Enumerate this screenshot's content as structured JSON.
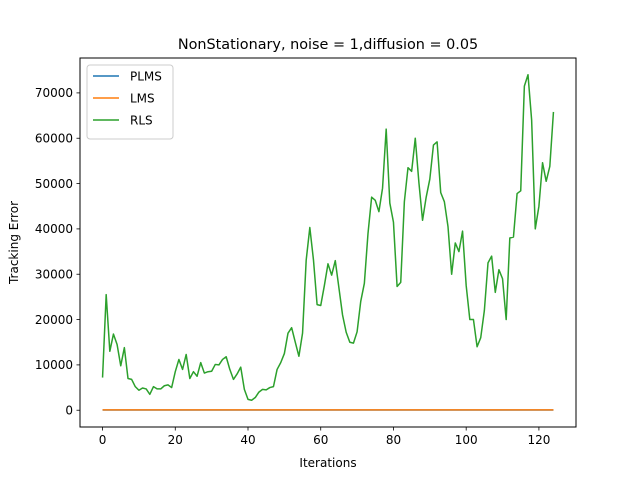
{
  "chart_data": {
    "type": "line",
    "title": "NonStationary, noise = 1,diffusion = 0.05",
    "xlabel": "Iterations",
    "ylabel": "Tracking Error",
    "xlim": [
      -6.2,
      130.2
    ],
    "ylim": [
      -3700,
      77700
    ],
    "xticks": [
      0,
      20,
      40,
      60,
      80,
      100,
      120
    ],
    "yticks": [
      0,
      10000,
      20000,
      30000,
      40000,
      50000,
      60000,
      70000
    ],
    "grid": false,
    "legend_position": "top-left",
    "series": [
      {
        "name": "PLMS",
        "color": "#1f77b4",
        "x_start": 0,
        "values": [
          50,
          50,
          50,
          50,
          50,
          50,
          50,
          50,
          50,
          50,
          50,
          50,
          50,
          50,
          50,
          50,
          50,
          50,
          50,
          50,
          50,
          50,
          50,
          50,
          50,
          50,
          50,
          50,
          50,
          50,
          50,
          50,
          50,
          50,
          50,
          50,
          50,
          50,
          50,
          50,
          50,
          50,
          50,
          50,
          50,
          50,
          50,
          50,
          50,
          50,
          50,
          50,
          50,
          50,
          50,
          50,
          50,
          50,
          50,
          50,
          50,
          50,
          50,
          50,
          50,
          50,
          50,
          50,
          50,
          50,
          50,
          50,
          50,
          50,
          50,
          50,
          50,
          50,
          50,
          50,
          50,
          50,
          50,
          50,
          50,
          50,
          50,
          50,
          50,
          50,
          50,
          50,
          50,
          50,
          50,
          50,
          50,
          50,
          50,
          50,
          50,
          50,
          50,
          50,
          50,
          50,
          50,
          50,
          50,
          50,
          50,
          50,
          50,
          50,
          50,
          50,
          50,
          50,
          50,
          50,
          50,
          50,
          50,
          50,
          50
        ]
      },
      {
        "name": "LMS",
        "color": "#ff7f0e",
        "x_start": 0,
        "values": [
          80,
          80,
          80,
          80,
          80,
          80,
          80,
          80,
          80,
          80,
          80,
          80,
          80,
          80,
          80,
          80,
          80,
          80,
          80,
          80,
          80,
          80,
          80,
          80,
          80,
          80,
          80,
          80,
          80,
          80,
          80,
          80,
          80,
          80,
          80,
          80,
          80,
          80,
          80,
          80,
          80,
          80,
          80,
          80,
          80,
          80,
          80,
          80,
          80,
          80,
          80,
          80,
          80,
          80,
          80,
          80,
          80,
          80,
          80,
          80,
          80,
          80,
          80,
          80,
          80,
          80,
          80,
          80,
          80,
          80,
          80,
          80,
          80,
          80,
          80,
          80,
          80,
          80,
          80,
          80,
          80,
          80,
          80,
          80,
          80,
          80,
          80,
          80,
          80,
          80,
          80,
          80,
          80,
          80,
          80,
          80,
          80,
          80,
          80,
          80,
          80,
          80,
          80,
          80,
          80,
          80,
          80,
          80,
          80,
          80,
          80,
          80,
          80,
          80,
          80,
          80,
          80,
          80,
          80,
          80,
          80,
          80,
          80,
          80,
          80
        ]
      },
      {
        "name": "RLS",
        "color": "#2ca02c",
        "x_start": 0,
        "values": [
          7200,
          25500,
          13000,
          16800,
          14500,
          9800,
          13800,
          7000,
          6800,
          5200,
          4400,
          4900,
          4700,
          3500,
          5200,
          4700,
          4700,
          5400,
          5600,
          5000,
          8500,
          11200,
          9000,
          12300,
          7000,
          8500,
          7500,
          10500,
          8200,
          8500,
          8600,
          10100,
          10000,
          11200,
          11800,
          9000,
          6800,
          8000,
          9500,
          4600,
          2400,
          2200,
          2800,
          4000,
          4600,
          4500,
          5000,
          5200,
          9000,
          10500,
          12500,
          17000,
          18200,
          15000,
          11900,
          17000,
          33100,
          40300,
          33200,
          23300,
          23100,
          27500,
          32300,
          29800,
          33000,
          27000,
          21000,
          17200,
          15000,
          14800,
          17300,
          24000,
          28000,
          39000,
          47000,
          46300,
          43800,
          49000,
          62000,
          45700,
          41500,
          27300,
          28200,
          46000,
          53500,
          52700,
          60000,
          50200,
          41900,
          47000,
          51000,
          58500,
          59200,
          48000,
          46000,
          40500,
          30000,
          36900,
          35000,
          39500,
          27500,
          20000,
          20000,
          14000,
          16000,
          22000,
          32500,
          34000,
          26000,
          31000,
          29000,
          20000,
          38000,
          38200,
          47800,
          48400,
          71500,
          74000,
          64000,
          40000,
          45000,
          54600,
          50500,
          53800,
          65800
        ]
      }
    ]
  }
}
